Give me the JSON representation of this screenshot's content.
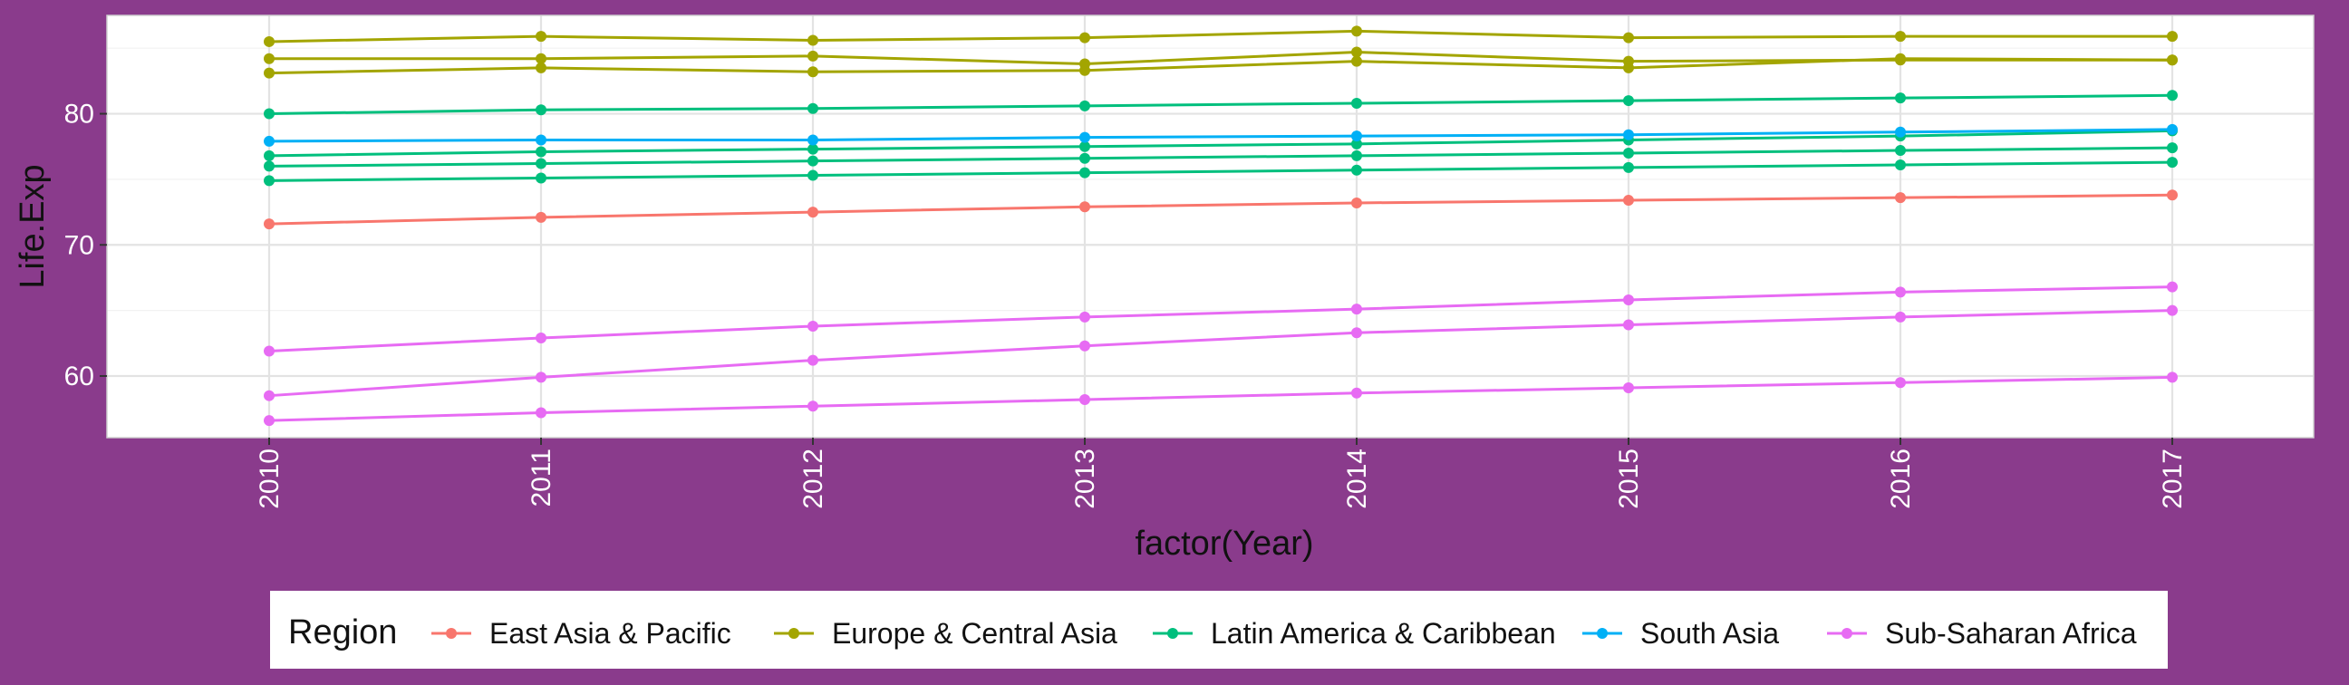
{
  "chart_data": {
    "type": "line",
    "xlabel": "factor(Year)",
    "ylabel": "Life.Exp",
    "x": [
      "2010",
      "2011",
      "2012",
      "2013",
      "2014",
      "2015",
      "2016",
      "2017"
    ],
    "ylim": [
      55.3,
      87.5
    ],
    "yticks": [
      60,
      70,
      80
    ],
    "grid": true,
    "legend": {
      "title": "Region",
      "position": "bottom"
    },
    "series": [
      {
        "name": "East Asia & Pacific",
        "color": "#f8766d",
        "lines": [
          [
            71.6,
            72.1,
            72.5,
            72.9,
            73.2,
            73.4,
            73.6,
            73.8
          ]
        ]
      },
      {
        "name": "Europe & Central Asia",
        "color": "#a3a500",
        "lines": [
          [
            85.5,
            85.9,
            85.6,
            85.8,
            86.3,
            85.8,
            85.9,
            85.9
          ],
          [
            84.2,
            84.2,
            84.4,
            83.8,
            84.7,
            84.0,
            84.1,
            84.1
          ],
          [
            83.1,
            83.5,
            83.2,
            83.3,
            84.0,
            83.5,
            84.2,
            84.1
          ]
        ]
      },
      {
        "name": "Latin America & Caribbean",
        "color": "#00bf7d",
        "lines": [
          [
            80.0,
            80.3,
            80.4,
            80.6,
            80.8,
            81.0,
            81.2,
            81.4
          ],
          [
            76.8,
            77.1,
            77.3,
            77.5,
            77.7,
            78.0,
            78.3,
            78.7
          ],
          [
            76.0,
            76.2,
            76.4,
            76.6,
            76.8,
            77.0,
            77.2,
            77.4
          ],
          [
            74.9,
            75.1,
            75.3,
            75.5,
            75.7,
            75.9,
            76.1,
            76.3
          ]
        ]
      },
      {
        "name": "South Asia",
        "color": "#00b0f6",
        "lines": [
          [
            77.9,
            78.0,
            78.0,
            78.2,
            78.3,
            78.4,
            78.6,
            78.8
          ]
        ]
      },
      {
        "name": "Sub-Saharan Africa",
        "color": "#e76bf3",
        "lines": [
          [
            61.9,
            62.9,
            63.8,
            64.5,
            65.1,
            65.8,
            66.4,
            66.8
          ],
          [
            58.5,
            59.9,
            61.2,
            62.3,
            63.3,
            63.9,
            64.5,
            65.0
          ],
          [
            56.6,
            57.2,
            57.7,
            58.2,
            58.7,
            59.1,
            59.5,
            59.9
          ]
        ]
      }
    ]
  }
}
